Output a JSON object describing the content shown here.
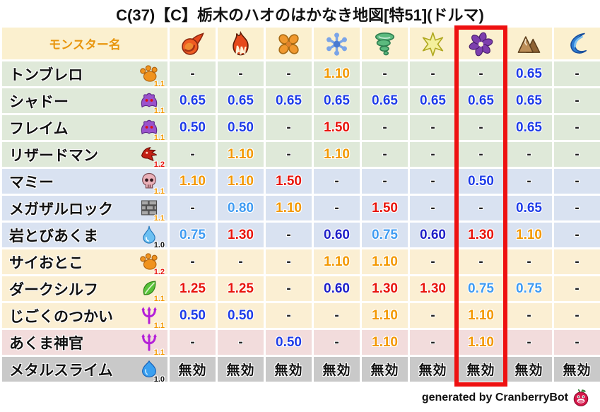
{
  "chart_data": {
    "type": "table",
    "title": "C(37)【C】栃木のハオのはかなき地図[特51](ドルマ)",
    "columns": [
      "fireball-icon",
      "flame-icon",
      "burst-icon",
      "snowflake-icon",
      "tornado-icon",
      "star-icon",
      "dark-pinwheel-icon",
      "mountain-icon",
      "water-swirl-icon"
    ],
    "highlighted_column_index": 6,
    "highlight_color": "#ee1111",
    "value_legend": {
      "blue": "#1e3ce8",
      "navy": "#1f1fc8",
      "sky": "#3f9bf2",
      "orange": "#f39800",
      "red": "#e8150c",
      "dash": "#222222",
      "immune": "#111111"
    },
    "rows": [
      {
        "name": "トンブレロ",
        "family_icon": "paw-icon",
        "magnification": "1.1",
        "magnification_color": "orange",
        "row_tint": "green",
        "cells": [
          [
            "-",
            "dash"
          ],
          [
            "-",
            "dash"
          ],
          [
            "-",
            "dash"
          ],
          [
            "1.10",
            "orange"
          ],
          [
            "-",
            "dash"
          ],
          [
            "-",
            "dash"
          ],
          [
            "-",
            "dash"
          ],
          [
            "0.65",
            "blue"
          ],
          [
            "-",
            "dash"
          ]
        ]
      },
      {
        "name": "シャドー",
        "family_icon": "demon-icon",
        "magnification": "1.1",
        "magnification_color": "orange",
        "row_tint": "green",
        "cells": [
          [
            "0.65",
            "blue"
          ],
          [
            "0.65",
            "blue"
          ],
          [
            "0.65",
            "blue"
          ],
          [
            "0.65",
            "blue"
          ],
          [
            "0.65",
            "blue"
          ],
          [
            "0.65",
            "blue"
          ],
          [
            "0.65",
            "blue"
          ],
          [
            "0.65",
            "blue"
          ],
          [
            "-",
            "dash"
          ]
        ]
      },
      {
        "name": "フレイム",
        "family_icon": "demon-icon",
        "magnification": "1.1",
        "magnification_color": "orange",
        "row_tint": "green",
        "cells": [
          [
            "0.50",
            "blue"
          ],
          [
            "0.50",
            "blue"
          ],
          [
            "-",
            "dash"
          ],
          [
            "1.50",
            "red"
          ],
          [
            "-",
            "dash"
          ],
          [
            "-",
            "dash"
          ],
          [
            "-",
            "dash"
          ],
          [
            "0.65",
            "blue"
          ],
          [
            "-",
            "dash"
          ]
        ]
      },
      {
        "name": "リザードマン",
        "family_icon": "dragon-icon",
        "magnification": "1.2",
        "magnification_color": "red",
        "row_tint": "green",
        "cells": [
          [
            "-",
            "dash"
          ],
          [
            "1.10",
            "orange"
          ],
          [
            "-",
            "dash"
          ],
          [
            "1.10",
            "orange"
          ],
          [
            "-",
            "dash"
          ],
          [
            "-",
            "dash"
          ],
          [
            "-",
            "dash"
          ],
          [
            "-",
            "dash"
          ],
          [
            "-",
            "dash"
          ]
        ]
      },
      {
        "name": "マミー",
        "family_icon": "skull-icon",
        "magnification": "1.1",
        "magnification_color": "orange",
        "row_tint": "blue",
        "cells": [
          [
            "1.10",
            "orange"
          ],
          [
            "1.10",
            "orange"
          ],
          [
            "1.50",
            "red"
          ],
          [
            "-",
            "dash"
          ],
          [
            "-",
            "dash"
          ],
          [
            "-",
            "dash"
          ],
          [
            "0.50",
            "blue"
          ],
          [
            "-",
            "dash"
          ],
          [
            "-",
            "dash"
          ]
        ]
      },
      {
        "name": "メガザルロック",
        "family_icon": "bricks-icon",
        "magnification": "1.1",
        "magnification_color": "orange",
        "row_tint": "blue",
        "cells": [
          [
            "-",
            "dash"
          ],
          [
            "0.80",
            "sky"
          ],
          [
            "1.10",
            "orange"
          ],
          [
            "-",
            "dash"
          ],
          [
            "1.50",
            "red"
          ],
          [
            "-",
            "dash"
          ],
          [
            "-",
            "dash"
          ],
          [
            "0.65",
            "blue"
          ],
          [
            "-",
            "dash"
          ]
        ]
      },
      {
        "name": "岩とびあくま",
        "family_icon": "waterdrop-icon",
        "magnification": "1.0",
        "magnification_color": "black",
        "row_tint": "blue",
        "cells": [
          [
            "0.75",
            "sky"
          ],
          [
            "1.30",
            "red"
          ],
          [
            "-",
            "dash"
          ],
          [
            "0.60",
            "navy"
          ],
          [
            "0.75",
            "sky"
          ],
          [
            "0.60",
            "navy"
          ],
          [
            "1.30",
            "red"
          ],
          [
            "1.10",
            "orange"
          ],
          [
            "-",
            "dash"
          ]
        ]
      },
      {
        "name": "サイおとこ",
        "family_icon": "paw-icon",
        "magnification": "1.2",
        "magnification_color": "red",
        "row_tint": "cream",
        "cells": [
          [
            "-",
            "dash"
          ],
          [
            "-",
            "dash"
          ],
          [
            "-",
            "dash"
          ],
          [
            "1.10",
            "orange"
          ],
          [
            "1.10",
            "orange"
          ],
          [
            "-",
            "dash"
          ],
          [
            "-",
            "dash"
          ],
          [
            "-",
            "dash"
          ],
          [
            "-",
            "dash"
          ]
        ]
      },
      {
        "name": "ダークシルフ",
        "family_icon": "leaf-icon",
        "magnification": "1.1",
        "magnification_color": "orange",
        "row_tint": "cream",
        "cells": [
          [
            "1.25",
            "red"
          ],
          [
            "1.25",
            "red"
          ],
          [
            "-",
            "dash"
          ],
          [
            "0.60",
            "navy"
          ],
          [
            "1.30",
            "red"
          ],
          [
            "1.30",
            "red"
          ],
          [
            "0.75",
            "sky"
          ],
          [
            "0.75",
            "sky"
          ],
          [
            "-",
            "dash"
          ]
        ]
      },
      {
        "name": "じごくのつかい",
        "family_icon": "trident-icon",
        "magnification": "1.1",
        "magnification_color": "orange",
        "row_tint": "cream",
        "cells": [
          [
            "0.50",
            "blue"
          ],
          [
            "0.50",
            "blue"
          ],
          [
            "-",
            "dash"
          ],
          [
            "-",
            "dash"
          ],
          [
            "1.10",
            "orange"
          ],
          [
            "-",
            "dash"
          ],
          [
            "1.10",
            "orange"
          ],
          [
            "-",
            "dash"
          ],
          [
            "-",
            "dash"
          ]
        ]
      },
      {
        "name": "あくま神官",
        "family_icon": "trident-icon",
        "magnification": "1.1",
        "magnification_color": "orange",
        "row_tint": "pink",
        "cells": [
          [
            "-",
            "dash"
          ],
          [
            "-",
            "dash"
          ],
          [
            "0.50",
            "blue"
          ],
          [
            "-",
            "dash"
          ],
          [
            "1.10",
            "orange"
          ],
          [
            "-",
            "dash"
          ],
          [
            "1.10",
            "orange"
          ],
          [
            "-",
            "dash"
          ],
          [
            "-",
            "dash"
          ]
        ]
      },
      {
        "name": "メタルスライム",
        "family_icon": "slime-icon",
        "magnification": "1.0",
        "magnification_color": "black",
        "row_tint": "gray",
        "cells": [
          [
            "無効",
            "immune"
          ],
          [
            "無効",
            "immune"
          ],
          [
            "無効",
            "immune"
          ],
          [
            "無効",
            "immune"
          ],
          [
            "無効",
            "immune"
          ],
          [
            "無効",
            "immune"
          ],
          [
            "無効",
            "immune"
          ],
          [
            "無効",
            "immune"
          ],
          [
            "無効",
            "immune"
          ]
        ]
      }
    ]
  },
  "header": {
    "name_column": "モンスター名"
  },
  "footer": {
    "credit": "generated by CranberryBot",
    "icon": "cranberry-bot-icon"
  }
}
